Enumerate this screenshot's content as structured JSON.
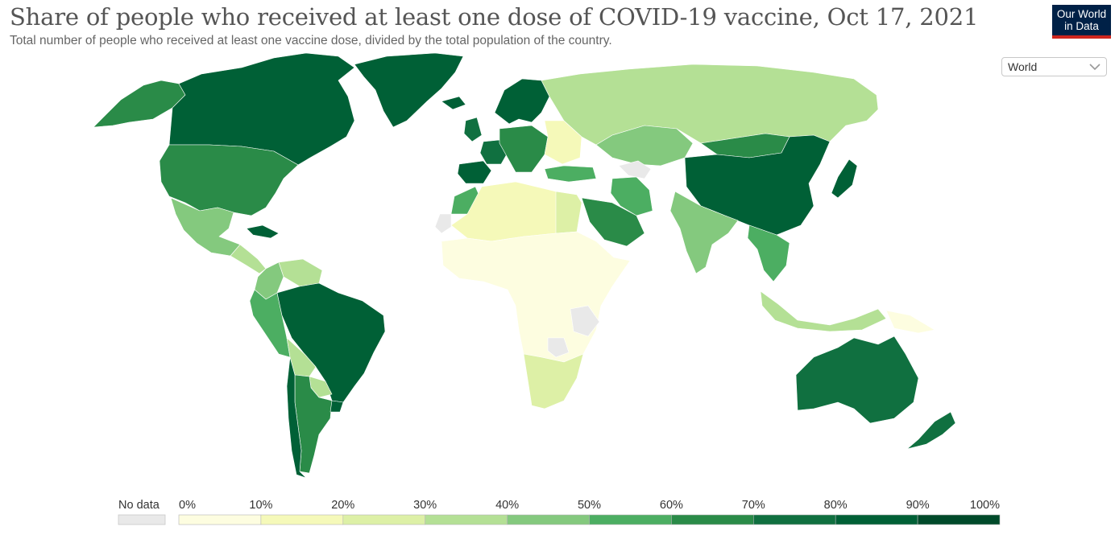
{
  "header": {
    "title": "Share of people who received at least one dose of COVID-19 vaccine, Oct 17, 2021",
    "subtitle": "Total number of people who received at least one vaccine dose, divided by the total population of the country."
  },
  "logo": {
    "line1": "Our World",
    "line2": "in Data"
  },
  "region_select": {
    "selected": "World",
    "options": [
      "World"
    ]
  },
  "legend": {
    "no_data_label": "No data",
    "no_data_color": "#e9e9e9",
    "ticks": [
      "0%",
      "10%",
      "20%",
      "30%",
      "40%",
      "50%",
      "60%",
      "70%",
      "80%",
      "90%",
      "100%"
    ],
    "colors": [
      "#fdfde0",
      "#f5f9b9",
      "#ddf0a6",
      "#b4e095",
      "#84c97e",
      "#4cae62",
      "#2a8b48",
      "#107040",
      "#006036",
      "#004a2a"
    ]
  },
  "map": {
    "regions": [
      {
        "name": "Canada",
        "bin": 8
      },
      {
        "name": "United States",
        "bin": 6
      },
      {
        "name": "Alaska",
        "bin": 6
      },
      {
        "name": "Greenland",
        "bin": 8
      },
      {
        "name": "Mexico",
        "bin": 4
      },
      {
        "name": "Cuba",
        "bin": 8
      },
      {
        "name": "Central America",
        "bin": 3
      },
      {
        "name": "Colombia",
        "bin": 4
      },
      {
        "name": "Venezuela",
        "bin": 3
      },
      {
        "name": "Peru",
        "bin": 5
      },
      {
        "name": "Brazil",
        "bin": 8
      },
      {
        "name": "Bolivia",
        "bin": 3
      },
      {
        "name": "Paraguay",
        "bin": 3
      },
      {
        "name": "Argentina",
        "bin": 6
      },
      {
        "name": "Chile",
        "bin": 8
      },
      {
        "name": "Uruguay",
        "bin": 8
      },
      {
        "name": "Iceland",
        "bin": 8
      },
      {
        "name": "Scandinavia",
        "bin": 8
      },
      {
        "name": "United Kingdom",
        "bin": 7
      },
      {
        "name": "Iberia",
        "bin": 8
      },
      {
        "name": "France",
        "bin": 7
      },
      {
        "name": "Central Europe",
        "bin": 6
      },
      {
        "name": "Eastern Europe",
        "bin": 1
      },
      {
        "name": "Russia",
        "bin": 3
      },
      {
        "name": "Turkey",
        "bin": 5
      },
      {
        "name": "Kazakhstan",
        "bin": 4
      },
      {
        "name": "Iran",
        "bin": 5
      },
      {
        "name": "Saudi Arabia",
        "bin": 6
      },
      {
        "name": "North Africa",
        "bin": 1
      },
      {
        "name": "Egypt",
        "bin": 2
      },
      {
        "name": "Morocco",
        "bin": 5
      },
      {
        "name": "Sub-Saharan Africa",
        "bin": 0
      },
      {
        "name": "Southern Africa",
        "bin": 2
      },
      {
        "name": "India",
        "bin": 4
      },
      {
        "name": "China",
        "bin": 8
      },
      {
        "name": "Mongolia",
        "bin": 6
      },
      {
        "name": "Japan",
        "bin": 8
      },
      {
        "name": "Southeast Asia",
        "bin": 5
      },
      {
        "name": "Indonesia",
        "bin": 3
      },
      {
        "name": "Australia",
        "bin": 7
      },
      {
        "name": "New Zealand",
        "bin": 7
      },
      {
        "name": "Papua New Guinea",
        "bin": 0
      }
    ]
  }
}
